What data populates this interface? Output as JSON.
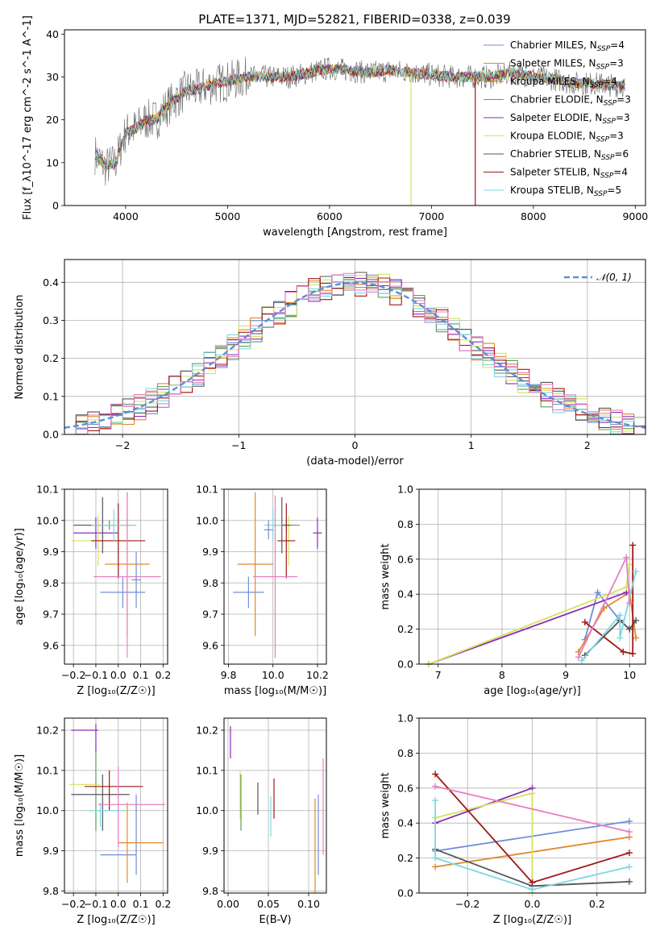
{
  "figure_title": "PLATE=1371, MJD=52821, FIBERID=0338, z=0.039",
  "colors": {
    "Chabrier MILES": "#6f8ed8",
    "Salpeter MILES": "#e0882c",
    "Kroupa MILES": "#e07a3c",
    "Chabrier ELODIE": "#5aa05a",
    "Salpeter ELODIE": "#8a2db8",
    "Kroupa ELODIE": "#d6e25a",
    "Chabrier STELIB": "#555555",
    "Salpeter STELIB": "#a01818",
    "Kroupa STELIB": "#7fd8e0",
    "pink": "#e77fc1",
    "gauss": "#5b8fd6"
  },
  "chart_data": [
    {
      "id": "spectrum",
      "type": "line",
      "xlabel": "wavelength [Angstrom, rest frame]",
      "ylabel": "Flux [f_λ10^-17 erg cm^-2 s^-1 A^-1]",
      "xlim": [
        3400,
        9100
      ],
      "ylim": [
        0,
        41
      ],
      "xticks": [
        4000,
        5000,
        6000,
        7000,
        8000,
        9000
      ],
      "yticks": [
        0,
        10,
        20,
        30,
        40
      ],
      "grid": false,
      "legend_position": "top-right",
      "legend": [
        {
          "label": "Chabrier MILES, N",
          "sub": "SSP",
          "tail": "=4",
          "color_key": "Chabrier MILES"
        },
        {
          "label": "Salpeter MILES, N",
          "sub": "SSP",
          "tail": "=3",
          "color_key": "Salpeter MILES"
        },
        {
          "label": "Kroupa MILES, N",
          "sub": "SSP",
          "tail": "=4",
          "color_key": "Kroupa MILES"
        },
        {
          "label": "Chabrier ELODIE, N",
          "sub": "SSP",
          "tail": "=3",
          "color_key": "Chabrier ELODIE"
        },
        {
          "label": "Salpeter ELODIE, N",
          "sub": "SSP",
          "tail": "=3",
          "color_key": "Salpeter ELODIE"
        },
        {
          "label": "Kroupa ELODIE, N",
          "sub": "SSP",
          "tail": "=3",
          "color_key": "Kroupa ELODIE"
        },
        {
          "label": "Chabrier STELIB, N",
          "sub": "SSP",
          "tail": "=6",
          "color_key": "Chabrier STELIB"
        },
        {
          "label": "Salpeter STELIB, N",
          "sub": "SSP",
          "tail": "=4",
          "color_key": "Salpeter STELIB"
        },
        {
          "label": "Kroupa STELIB, N",
          "sub": "SSP",
          "tail": "=5",
          "color_key": "Kroupa STELIB"
        }
      ],
      "continuum": [
        [
          3700,
          12
        ],
        [
          3800,
          9
        ],
        [
          3900,
          10
        ],
        [
          4000,
          17
        ],
        [
          4100,
          18
        ],
        [
          4200,
          20
        ],
        [
          4300,
          20
        ],
        [
          4400,
          23
        ],
        [
          4500,
          25
        ],
        [
          4600,
          27
        ],
        [
          4700,
          27
        ],
        [
          4800,
          28
        ],
        [
          5000,
          29
        ],
        [
          5200,
          30
        ],
        [
          5400,
          30
        ],
        [
          5600,
          30
        ],
        [
          5800,
          31
        ],
        [
          6000,
          32
        ],
        [
          6200,
          31.5
        ],
        [
          6400,
          31
        ],
        [
          6600,
          31.5
        ],
        [
          6800,
          31
        ],
        [
          7000,
          30.5
        ],
        [
          7200,
          30
        ],
        [
          7400,
          30
        ],
        [
          7600,
          30
        ],
        [
          7800,
          31
        ],
        [
          8000,
          30
        ],
        [
          8200,
          29.5
        ],
        [
          8400,
          28.5
        ],
        [
          8600,
          28.5
        ],
        [
          8800,
          28
        ],
        [
          8900,
          28
        ]
      ],
      "dropouts": [
        {
          "series": "Kroupa ELODIE",
          "x": 6800
        },
        {
          "series": "Salpeter STELIB",
          "x": 7430
        }
      ]
    },
    {
      "id": "residuals",
      "type": "step",
      "xlabel": "(data-model)/error",
      "ylabel": "Normed distribution",
      "xlim": [
        -2.5,
        2.5
      ],
      "ylim": [
        0,
        0.46
      ],
      "xticks": [
        -2,
        -1,
        0,
        1,
        2
      ],
      "yticks": [
        0.0,
        0.1,
        0.2,
        0.3,
        0.4
      ],
      "grid": true,
      "legend_position": "top-right",
      "legend_label": "𝒩(0, 1)",
      "bin_width": 0.1,
      "histogram_series": [
        "Chabrier MILES",
        "Salpeter MILES",
        "Chabrier ELODIE",
        "Salpeter ELODIE",
        "Kroupa ELODIE",
        "Chabrier STELIB",
        "Salpeter STELIB",
        "Kroupa STELIB",
        "pink"
      ]
    },
    {
      "id": "age_vs_Z",
      "type": "scatter",
      "xlabel": "Z [log₁₀(Z/Z☉)]",
      "ylabel": "age  [log₁₀(age/yr)]",
      "xlim": [
        -0.24,
        0.22
      ],
      "ylim": [
        9.54,
        10.1
      ],
      "xticks": [
        -0.2,
        -0.1,
        0.0,
        0.1,
        0.2
      ],
      "yticks": [
        9.6,
        9.7,
        9.8,
        9.9,
        10.0,
        10.1
      ],
      "grid": true,
      "points": [
        {
          "series": "Chabrier MILES",
          "x": 0.02,
          "y": 9.77,
          "xerr": 0.1,
          "yerr": 0.05
        },
        {
          "series": "Salpeter MILES",
          "x": 0.04,
          "y": 9.86,
          "xerr": 0.1,
          "yerr": 0.23
        },
        {
          "series": "Chabrier ELODIE",
          "x": -0.04,
          "y": 9.985,
          "xerr": 0.12,
          "yerr": 0.015
        },
        {
          "series": "Salpeter ELODIE",
          "x": -0.1,
          "y": 9.96,
          "xerr": 0.1,
          "yerr": 0.05
        },
        {
          "series": "Kroupa ELODIE",
          "x": -0.09,
          "y": 9.935,
          "xerr": 0.12,
          "yerr": 0.08
        },
        {
          "series": "Chabrier STELIB",
          "x": -0.07,
          "y": 9.985,
          "xerr": 0.13,
          "yerr": 0.09
        },
        {
          "series": "Salpeter STELIB",
          "x": 0.0,
          "y": 9.935,
          "xerr": 0.12,
          "yerr": 0.12
        },
        {
          "series": "Kroupa STELIB",
          "x": -0.02,
          "y": 9.985,
          "xerr": 0.1,
          "yerr": 0.05
        },
        {
          "series": "pink",
          "x": 0.04,
          "y": 9.82,
          "xerr": 0.15,
          "yerr": 0.26
        },
        {
          "series": "Chabrier MILES",
          "x": 0.08,
          "y": 9.81,
          "xerr": 0.02,
          "yerr": 0.09
        }
      ]
    },
    {
      "id": "age_vs_mass",
      "type": "scatter",
      "xlabel": "mass [log₁₀(M/M☉)]",
      "ylabel": "",
      "xlim": [
        9.78,
        10.24
      ],
      "ylim": [
        9.54,
        10.1
      ],
      "xticks": [
        9.8,
        10.0,
        10.2
      ],
      "yticks": [
        9.6,
        9.7,
        9.8,
        9.9,
        10.0,
        10.1
      ],
      "grid": true,
      "points": [
        {
          "series": "Chabrier MILES",
          "x": 9.89,
          "y": 9.77,
          "xerr": 0.07,
          "yerr": 0.05
        },
        {
          "series": "Salpeter MILES",
          "x": 9.92,
          "y": 9.86,
          "xerr": 0.08,
          "yerr": 0.23
        },
        {
          "series": "Chabrier ELODIE",
          "x": 10.06,
          "y": 9.985,
          "xerr": 0.06,
          "yerr": 0.015
        },
        {
          "series": "Salpeter ELODIE",
          "x": 10.2,
          "y": 9.96,
          "xerr": 0.02,
          "yerr": 0.05
        },
        {
          "series": "Kroupa ELODIE",
          "x": 10.07,
          "y": 9.935,
          "xerr": 0.03,
          "yerr": 0.08
        },
        {
          "series": "Chabrier STELIB",
          "x": 10.04,
          "y": 9.985,
          "xerr": 0.04,
          "yerr": 0.09
        },
        {
          "series": "Salpeter STELIB",
          "x": 10.06,
          "y": 9.935,
          "xerr": 0.04,
          "yerr": 0.12
        },
        {
          "series": "Kroupa STELIB",
          "x": 10.0,
          "y": 9.985,
          "xerr": 0.04,
          "yerr": 0.05
        },
        {
          "series": "pink",
          "x": 10.01,
          "y": 9.82,
          "xerr": 0.1,
          "yerr": 0.26
        },
        {
          "series": "Chabrier MILES",
          "x": 9.98,
          "y": 9.97,
          "xerr": 0.02,
          "yerr": 0.03
        }
      ]
    },
    {
      "id": "weight_vs_age",
      "type": "line",
      "xlabel": "age  [log₁₀(age/yr)]",
      "ylabel": "mass weight",
      "xlim": [
        6.7,
        10.25
      ],
      "ylim": [
        0,
        1
      ],
      "xticks": [
        7,
        8,
        9,
        10
      ],
      "yticks": [
        0.0,
        0.2,
        0.4,
        0.6,
        0.8,
        1.0
      ],
      "grid": true,
      "series": [
        {
          "name": "Chabrier MILES",
          "x": [
            9.3,
            9.5,
            9.85,
            10.0
          ],
          "y": [
            0.14,
            0.41,
            0.25,
            0.2
          ]
        },
        {
          "name": "Salpeter MILES",
          "x": [
            9.2,
            9.6,
            10.0,
            10.1
          ],
          "y": [
            0.07,
            0.32,
            0.41,
            0.15
          ]
        },
        {
          "name": "Salpeter ELODIE",
          "x": [
            6.85,
            9.95
          ],
          "y": [
            0.0,
            0.41
          ]
        },
        {
          "name": "Kroupa ELODIE",
          "x": [
            6.85,
            9.95,
            10.0
          ],
          "y": [
            0.0,
            0.44,
            0.57
          ]
        },
        {
          "name": "Chabrier STELIB",
          "x": [
            9.3,
            9.85,
            10.0,
            10.1
          ],
          "y": [
            0.05,
            0.25,
            0.2,
            0.25
          ]
        },
        {
          "name": "Salpeter STELIB",
          "x": [
            9.3,
            9.9,
            10.05,
            10.05
          ],
          "y": [
            0.24,
            0.07,
            0.06,
            0.68
          ]
        },
        {
          "name": "Kroupa STELIB",
          "x": [
            9.25,
            9.85,
            9.85,
            10.1
          ],
          "y": [
            0.02,
            0.28,
            0.15,
            0.53
          ]
        },
        {
          "name": "pink",
          "x": [
            9.2,
            9.95,
            10.0
          ],
          "y": [
            0.04,
            0.61,
            0.35
          ]
        }
      ]
    },
    {
      "id": "mass_vs_Z",
      "type": "scatter",
      "xlabel": "Z [log₁₀(Z/Z☉)]",
      "ylabel": "mass [log₁₀(M/M☉)]",
      "xlim": [
        -0.24,
        0.22
      ],
      "ylim": [
        9.795,
        10.23
      ],
      "xticks": [
        -0.2,
        -0.1,
        0.0,
        0.1,
        0.2
      ],
      "yticks": [
        9.8,
        9.9,
        10.0,
        10.1,
        10.2
      ],
      "grid": true,
      "points": [
        {
          "series": "Chabrier MILES",
          "x": 0.0,
          "y": 9.89,
          "xerr": 0.08,
          "yerr": 0.0
        },
        {
          "series": "Chabrier MILES",
          "x": 0.08,
          "y": 9.94,
          "xerr": 0.0,
          "yerr": 0.1
        },
        {
          "series": "Salpeter MILES",
          "x": 0.1,
          "y": 9.92,
          "xerr": 0.1,
          "yerr": 0.0
        },
        {
          "series": "Salpeter MILES",
          "x": 0.04,
          "y": 9.92,
          "xerr": 0.0,
          "yerr": 0.1
        },
        {
          "series": "Chabrier ELODIE",
          "x": -0.1,
          "y": 10.05,
          "xerr": 0.0,
          "yerr": 0.1
        },
        {
          "series": "Salpeter ELODIE",
          "x": -0.15,
          "y": 10.2,
          "xerr": 0.06,
          "yerr": 0.0
        },
        {
          "series": "Salpeter ELODIE",
          "x": -0.1,
          "y": 10.18,
          "xerr": 0.0,
          "yerr": 0.035
        },
        {
          "series": "Kroupa ELODIE",
          "x": -0.15,
          "y": 10.065,
          "xerr": 0.07,
          "yerr": 0.0
        },
        {
          "series": "Chabrier STELIB",
          "x": -0.08,
          "y": 10.04,
          "xerr": 0.13,
          "yerr": 0.0
        },
        {
          "series": "Chabrier STELIB",
          "x": -0.07,
          "y": 10.02,
          "xerr": 0.0,
          "yerr": 0.07
        },
        {
          "series": "Salpeter STELIB",
          "x": -0.02,
          "y": 10.06,
          "xerr": 0.13,
          "yerr": 0.0
        },
        {
          "series": "Salpeter STELIB",
          "x": -0.04,
          "y": 10.05,
          "xerr": 0.0,
          "yerr": 0.05
        },
        {
          "series": "Kroupa STELIB",
          "x": -0.05,
          "y": 10.0,
          "xerr": 0.08,
          "yerr": 0.0
        },
        {
          "series": "Kroupa STELIB",
          "x": -0.08,
          "y": 9.99,
          "xerr": 0.0,
          "yerr": 0.03
        },
        {
          "series": "pink",
          "x": 0.06,
          "y": 10.015,
          "xerr": 0.15,
          "yerr": 0.0
        },
        {
          "series": "pink",
          "x": 0.0,
          "y": 10.01,
          "xerr": 0.0,
          "yerr": 0.1
        }
      ]
    },
    {
      "id": "mass_vs_ebv",
      "type": "scatter",
      "xlabel": "E(B-V)",
      "ylabel": "",
      "xlim": [
        -0.005,
        0.122
      ],
      "ylim": [
        9.795,
        10.23
      ],
      "xticks": [
        0.0,
        0.05,
        0.1
      ],
      "yticks": [
        9.8,
        9.9,
        10.0,
        10.1,
        10.2
      ],
      "grid": true,
      "points": [
        {
          "series": "Salpeter ELODIE",
          "x": 0.003,
          "y": 10.17,
          "yerr": 0.04
        },
        {
          "series": "Kroupa ELODIE",
          "x": 0.015,
          "y": 10.04,
          "yerr": 0.06
        },
        {
          "series": "Chabrier ELODIE",
          "x": 0.016,
          "y": 10.02,
          "yerr": 0.07
        },
        {
          "series": "Chabrier STELIB",
          "x": 0.037,
          "y": 10.03,
          "yerr": 0.04
        },
        {
          "series": "Kroupa STELIB",
          "x": 0.053,
          "y": 9.985,
          "yerr": 0.05
        },
        {
          "series": "Salpeter STELIB",
          "x": 0.057,
          "y": 10.03,
          "yerr": 0.05
        },
        {
          "series": "Salpeter MILES",
          "x": 0.108,
          "y": 9.91,
          "yerr": 0.12
        },
        {
          "series": "Chabrier MILES",
          "x": 0.112,
          "y": 9.94,
          "yerr": 0.1
        },
        {
          "series": "pink",
          "x": 0.118,
          "y": 10.01,
          "yerr": 0.12
        }
      ]
    },
    {
      "id": "weight_vs_Z",
      "type": "line",
      "xlabel": "Z [log₁₀(Z/Z☉)]",
      "ylabel": "mass weight",
      "xlim": [
        -0.35,
        0.35
      ],
      "ylim": [
        0,
        1
      ],
      "xticks": [
        -0.2,
        0.0,
        0.2
      ],
      "yticks": [
        0.0,
        0.2,
        0.4,
        0.6,
        0.8,
        1.0
      ],
      "grid": true,
      "series": [
        {
          "name": "Chabrier MILES",
          "x": [
            -0.3,
            0.3
          ],
          "y": [
            0.24,
            0.41
          ]
        },
        {
          "name": "Salpeter MILES",
          "x": [
            -0.3,
            0.3
          ],
          "y": [
            0.15,
            0.32
          ]
        },
        {
          "name": "Salpeter ELODIE",
          "x": [
            -0.3,
            0.0
          ],
          "y": [
            0.4,
            0.6
          ]
        },
        {
          "name": "Kroupa ELODIE",
          "x": [
            -0.3,
            0.0,
            0.0
          ],
          "y": [
            0.43,
            0.57,
            0.0
          ]
        },
        {
          "name": "Chabrier STELIB",
          "x": [
            -0.3,
            0.0,
            0.3
          ],
          "y": [
            0.25,
            0.04,
            0.065
          ]
        },
        {
          "name": "Salpeter STELIB",
          "x": [
            -0.3,
            0.0,
            0.3
          ],
          "y": [
            0.68,
            0.06,
            0.23
          ]
        },
        {
          "name": "Kroupa STELIB",
          "x": [
            -0.3,
            -0.3,
            0.0,
            0.3
          ],
          "y": [
            0.53,
            0.2,
            0.02,
            0.15
          ]
        },
        {
          "name": "pink",
          "x": [
            -0.3,
            0.3
          ],
          "y": [
            0.61,
            0.35
          ]
        }
      ]
    }
  ]
}
